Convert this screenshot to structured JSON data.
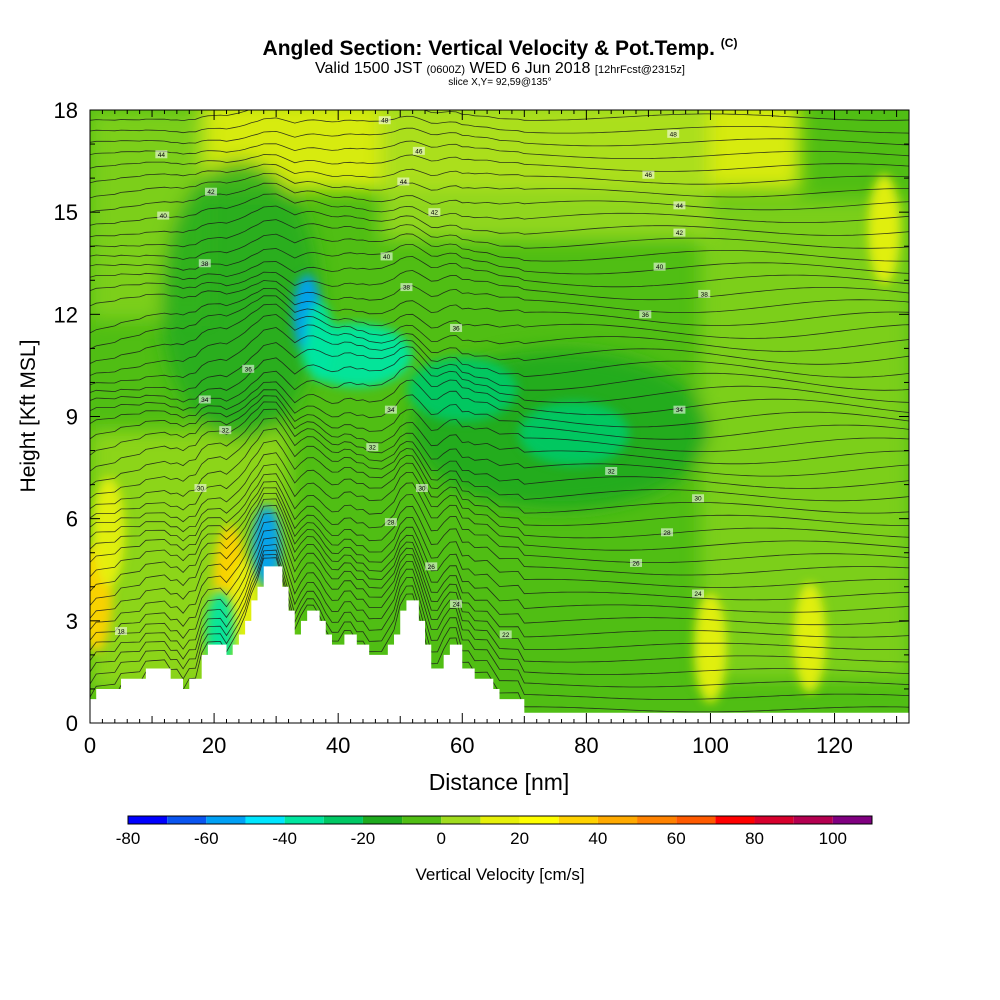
{
  "header": {
    "title": "Angled Section: Vertical Velocity & Pot.Temp.",
    "title_mark": "(C)",
    "valid_prefix": "Valid 1500 JST",
    "valid_zulu": "(0600Z)",
    "valid_date": "WED 6 Jun 2018",
    "forecast": "[12hrFcst@2315z]",
    "slice": "slice X,Y= 92,59@135°"
  },
  "chart_data": {
    "type": "heatmap",
    "xlabel": "Distance [nm]",
    "ylabel": "Height [Kft MSL]",
    "xlim": [
      0,
      132
    ],
    "ylim": [
      0,
      18
    ],
    "x_ticks": [
      0,
      20,
      40,
      60,
      80,
      100,
      120
    ],
    "y_ticks": [
      0,
      3,
      6,
      9,
      12,
      15,
      18
    ],
    "colorbar": {
      "label": "Vertical Velocity [cm/s]",
      "tick_values": [
        -80,
        -60,
        -40,
        -20,
        0,
        20,
        40,
        60,
        80,
        100
      ],
      "bounds": [
        -80,
        110
      ],
      "step": 10,
      "colors": [
        "#0000ff",
        "#0a55f0",
        "#00a0f5",
        "#00e6ff",
        "#00e6a0",
        "#00c864",
        "#1eaa1e",
        "#50be14",
        "#a0dc1e",
        "#e6f00a",
        "#ffff00",
        "#ffd200",
        "#ffaa00",
        "#ff8200",
        "#ff5a00",
        "#ff0000",
        "#d7002d",
        "#b40050",
        "#800080"
      ]
    },
    "terrain_profile": [
      [
        0,
        0.7
      ],
      [
        1,
        0.7
      ],
      [
        1,
        1
      ],
      [
        5,
        1
      ],
      [
        5,
        1.3
      ],
      [
        9,
        1.3
      ],
      [
        9,
        1.6
      ],
      [
        13,
        1.6
      ],
      [
        13,
        1.3
      ],
      [
        15,
        1.3
      ],
      [
        15,
        1
      ],
      [
        16,
        1
      ],
      [
        16,
        1.3
      ],
      [
        18,
        1.3
      ],
      [
        18,
        2
      ],
      [
        19,
        2
      ],
      [
        19,
        2.3
      ],
      [
        22,
        2.3
      ],
      [
        22,
        2
      ],
      [
        23,
        2
      ],
      [
        23,
        2.3
      ],
      [
        24,
        2.3
      ],
      [
        24,
        2.6
      ],
      [
        25,
        2.6
      ],
      [
        25,
        3
      ],
      [
        26,
        3
      ],
      [
        26,
        3.6
      ],
      [
        27,
        3.6
      ],
      [
        27,
        4
      ],
      [
        28,
        4
      ],
      [
        28,
        4.6
      ],
      [
        31,
        4.6
      ],
      [
        31,
        4
      ],
      [
        32,
        4
      ],
      [
        32,
        3.3
      ],
      [
        33,
        3.3
      ],
      [
        33,
        2.6
      ],
      [
        34,
        2.6
      ],
      [
        34,
        3
      ],
      [
        35,
        3
      ],
      [
        35,
        3.3
      ],
      [
        37,
        3.3
      ],
      [
        37,
        3
      ],
      [
        38,
        3
      ],
      [
        38,
        2.6
      ],
      [
        39,
        2.6
      ],
      [
        39,
        2.3
      ],
      [
        41,
        2.3
      ],
      [
        41,
        2.6
      ],
      [
        43,
        2.6
      ],
      [
        43,
        2.3
      ],
      [
        45,
        2.3
      ],
      [
        45,
        2
      ],
      [
        48,
        2
      ],
      [
        48,
        2.3
      ],
      [
        49,
        2.3
      ],
      [
        49,
        2.6
      ],
      [
        50,
        2.6
      ],
      [
        50,
        3.3
      ],
      [
        51,
        3.3
      ],
      [
        51,
        3.6
      ],
      [
        53,
        3.6
      ],
      [
        53,
        3
      ],
      [
        54,
        3
      ],
      [
        54,
        2.3
      ],
      [
        55,
        2.3
      ],
      [
        55,
        1.6
      ],
      [
        57,
        1.6
      ],
      [
        57,
        2
      ],
      [
        58,
        2
      ],
      [
        58,
        2.3
      ],
      [
        60,
        2.3
      ],
      [
        60,
        1.6
      ],
      [
        62,
        1.6
      ],
      [
        62,
        1.3
      ],
      [
        65,
        1.3
      ],
      [
        65,
        1
      ],
      [
        66,
        1
      ],
      [
        66,
        0.7
      ],
      [
        70,
        0.7
      ],
      [
        70,
        0.3
      ],
      [
        132,
        0.3
      ]
    ],
    "updraft_cells": [
      {
        "x": 1,
        "y": 3.7,
        "value": 35
      },
      {
        "x": 3,
        "y": 5.6,
        "value": 15
      },
      {
        "x": 22.5,
        "y": 4.2,
        "value": 35
      },
      {
        "x": 25,
        "y": 3.2,
        "value": 18
      },
      {
        "x": 100,
        "y": 2.2,
        "value": 18
      },
      {
        "x": 116,
        "y": 2.5,
        "value": 15
      },
      {
        "x": 128,
        "y": 14.5,
        "value": 12
      }
    ],
    "downdraft_cells": [
      {
        "x": 28.5,
        "y": 5.2,
        "value": -60
      },
      {
        "x": 35,
        "y": 12,
        "value": -55
      },
      {
        "x": 37,
        "y": 11.2,
        "value": -40
      },
      {
        "x": 43,
        "y": 10.8,
        "value": -35
      },
      {
        "x": 60,
        "y": 9.8,
        "value": -30
      },
      {
        "x": 78,
        "y": 8.5,
        "value": -25
      },
      {
        "x": 21,
        "y": 2.7,
        "value": -40
      }
    ],
    "isentrope_labels": [
      {
        "x": 47.5,
        "y": 17.7,
        "text": "48"
      },
      {
        "x": 11.5,
        "y": 16.7,
        "text": "44"
      },
      {
        "x": 53,
        "y": 16.8,
        "text": "46"
      },
      {
        "x": 94,
        "y": 17.3,
        "text": "48"
      },
      {
        "x": 90,
        "y": 16.1,
        "text": "46"
      },
      {
        "x": 19.5,
        "y": 15.6,
        "text": "42"
      },
      {
        "x": 50.5,
        "y": 15.9,
        "text": "44"
      },
      {
        "x": 95,
        "y": 15.2,
        "text": "44"
      },
      {
        "x": 11.8,
        "y": 14.9,
        "text": "40"
      },
      {
        "x": 55.5,
        "y": 15,
        "text": "42"
      },
      {
        "x": 95,
        "y": 14.4,
        "text": "42"
      },
      {
        "x": 18.5,
        "y": 13.5,
        "text": "38"
      },
      {
        "x": 47.8,
        "y": 13.7,
        "text": "40"
      },
      {
        "x": 91.8,
        "y": 13.4,
        "text": "40"
      },
      {
        "x": 51,
        "y": 12.8,
        "text": "38"
      },
      {
        "x": 99,
        "y": 12.6,
        "text": "38"
      },
      {
        "x": 59,
        "y": 11.6,
        "text": "36"
      },
      {
        "x": 89.5,
        "y": 12,
        "text": "36"
      },
      {
        "x": 25.5,
        "y": 10.4,
        "text": "36"
      },
      {
        "x": 18.5,
        "y": 9.5,
        "text": "34"
      },
      {
        "x": 48.5,
        "y": 9.2,
        "text": "34"
      },
      {
        "x": 95,
        "y": 9.2,
        "text": "34"
      },
      {
        "x": 21.8,
        "y": 8.6,
        "text": "32"
      },
      {
        "x": 45.5,
        "y": 8.1,
        "text": "32"
      },
      {
        "x": 84,
        "y": 7.4,
        "text": "32"
      },
      {
        "x": 17.8,
        "y": 6.9,
        "text": "30"
      },
      {
        "x": 53.5,
        "y": 6.9,
        "text": "30"
      },
      {
        "x": 98,
        "y": 6.6,
        "text": "30"
      },
      {
        "x": 48.5,
        "y": 5.9,
        "text": "28"
      },
      {
        "x": 93,
        "y": 5.6,
        "text": "28"
      },
      {
        "x": 55,
        "y": 4.6,
        "text": "26"
      },
      {
        "x": 88,
        "y": 4.7,
        "text": "26"
      },
      {
        "x": 59,
        "y": 3.5,
        "text": "24"
      },
      {
        "x": 98,
        "y": 3.8,
        "text": "24"
      },
      {
        "x": 67,
        "y": 2.6,
        "text": "22"
      },
      {
        "x": 5,
        "y": 2.7,
        "text": "18"
      }
    ]
  }
}
